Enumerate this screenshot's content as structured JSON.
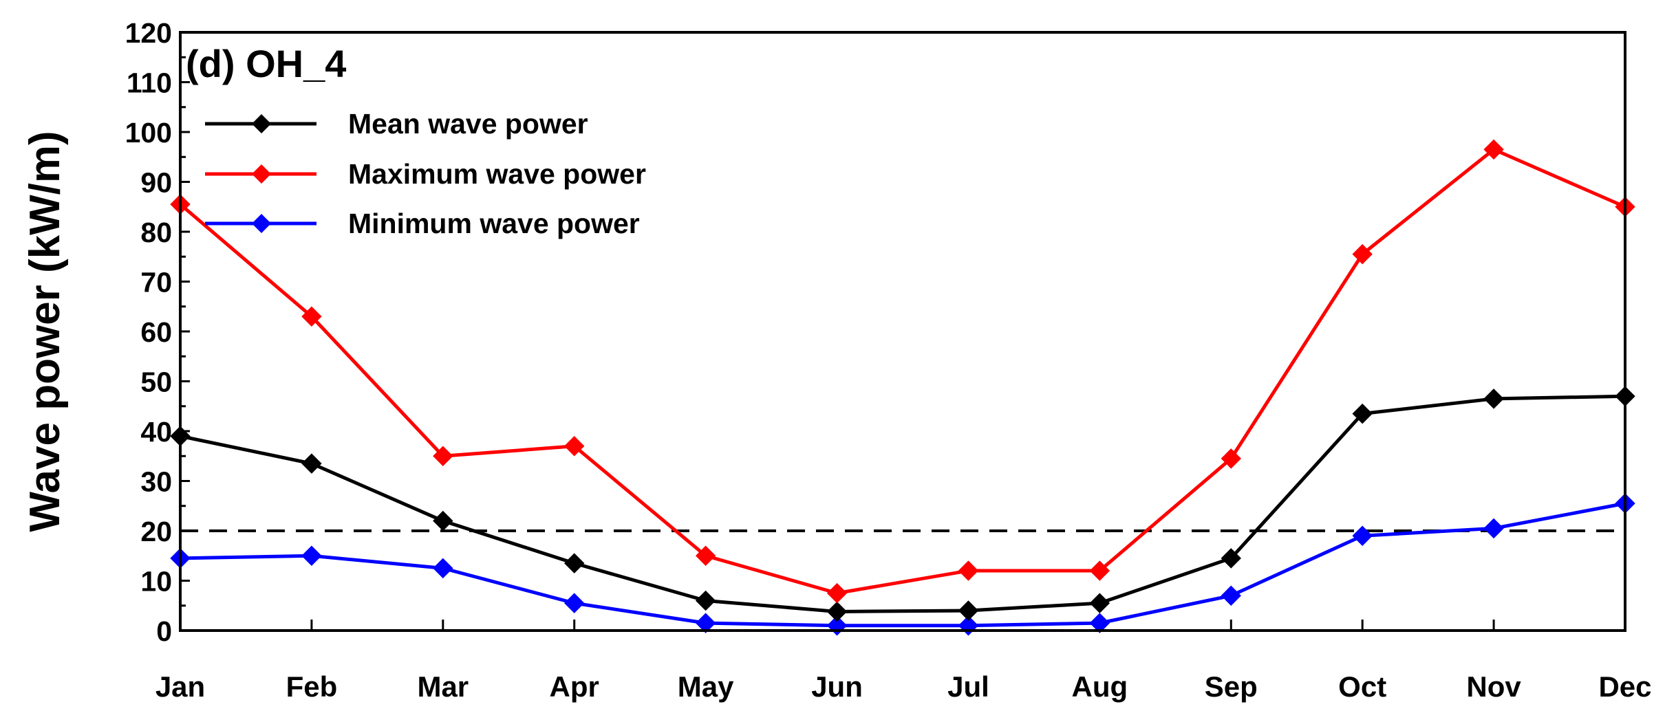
{
  "chart_data": {
    "type": "line",
    "panel_label": "(d) OH_4",
    "categories": [
      "Jan",
      "Feb",
      "Mar",
      "Apr",
      "May",
      "Jun",
      "Jul",
      "Aug",
      "Sep",
      "Oct",
      "Nov",
      "Dec"
    ],
    "ylabel": "Wave power (kW/m)",
    "xlabel": "",
    "ylim": [
      0,
      120
    ],
    "yticks": [
      0,
      10,
      20,
      30,
      40,
      50,
      60,
      70,
      80,
      90,
      100,
      110,
      120
    ],
    "grid": false,
    "legend_position": "top-left",
    "reference_line": {
      "y": 20,
      "style": "dashed",
      "color": "#000000"
    },
    "series": [
      {
        "name": "Mean wave power",
        "color": "#000000",
        "marker": "diamond",
        "values": [
          39,
          33.5,
          22,
          13.5,
          6,
          3.8,
          4,
          5.5,
          14.5,
          43.5,
          46.5,
          47
        ]
      },
      {
        "name": "Maximum wave power",
        "color": "#ff0000",
        "marker": "diamond",
        "values": [
          85.5,
          63,
          35,
          37,
          15,
          7.5,
          12,
          12,
          34.5,
          75.5,
          96.5,
          85
        ]
      },
      {
        "name": "Minimum wave power",
        "color": "#0000ff",
        "marker": "diamond",
        "values": [
          14.5,
          15,
          12.5,
          5.5,
          1.5,
          1,
          1,
          1.5,
          7,
          19,
          20.5,
          25.5
        ]
      }
    ]
  }
}
